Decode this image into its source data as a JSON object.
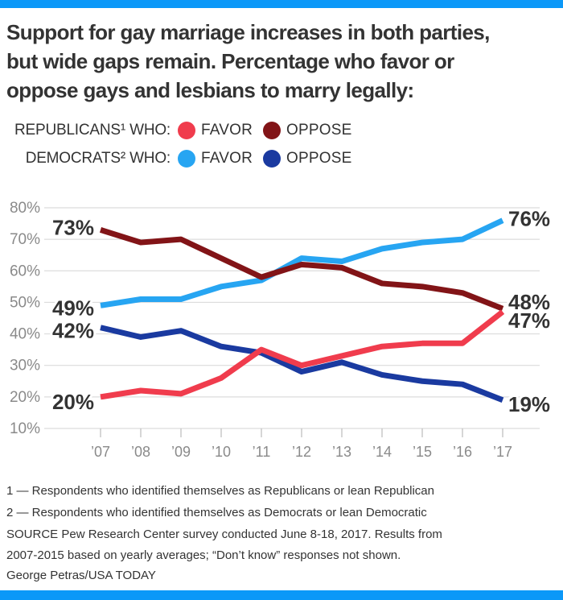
{
  "accent_color": "#0b98f8",
  "title_lines": [
    "Support for gay marriage increases in both parties,",
    "but wide gaps remain. Percentage who favor or",
    "oppose gays and lesbians to marry legally:"
  ],
  "legend": {
    "rows": [
      {
        "label": "REPUBLICANS¹ WHO:",
        "favor_label": "FAVOR",
        "oppose_label": "OPPOSE"
      },
      {
        "label": "DEMOCRATS² WHO:",
        "favor_label": "FAVOR",
        "oppose_label": "OPPOSE"
      }
    ]
  },
  "chart_data": {
    "type": "line",
    "title": "Percentage who favor or oppose gays and lesbians to marry legally",
    "categories": [
      "’07",
      "’08",
      "’09",
      "’10",
      "’11",
      "’12",
      "’13",
      "’14",
      "’15",
      "’16",
      "’17"
    ],
    "ylim": [
      10,
      80
    ],
    "grid": true,
    "legend_position": "top",
    "y_ticks": [
      {
        "value": 80,
        "label": "80%"
      },
      {
        "value": 70,
        "label": "70%"
      },
      {
        "value": 60,
        "label": "60%"
      },
      {
        "value": 50,
        "label": "50%"
      },
      {
        "value": 40,
        "label": "40%"
      },
      {
        "value": 30,
        "label": "30%"
      },
      {
        "value": 20,
        "label": "20%"
      },
      {
        "value": 10,
        "label": "10%"
      }
    ],
    "series": [
      {
        "name": "Republicans favor",
        "color": "#f03c4d",
        "values": [
          20,
          22,
          21,
          26,
          35,
          30,
          33,
          36,
          37,
          37,
          47
        ],
        "start_label": "20%",
        "end_label": "47%"
      },
      {
        "name": "Republicans oppose",
        "color": "#821417",
        "values": [
          73,
          69,
          70,
          64,
          58,
          62,
          61,
          56,
          55,
          53,
          48
        ],
        "start_label": "73%",
        "end_label": "48%"
      },
      {
        "name": "Democrats favor",
        "color": "#27a5f2",
        "values": [
          49,
          51,
          51,
          55,
          57,
          64,
          63,
          67,
          69,
          70,
          76
        ],
        "start_label": "49%",
        "end_label": "76%"
      },
      {
        "name": "Democrats oppose",
        "color": "#1a3aa0",
        "values": [
          42,
          39,
          41,
          36,
          34,
          28,
          31,
          27,
          25,
          24,
          19
        ],
        "start_label": "42%",
        "end_label": "19%"
      }
    ]
  },
  "footnotes": [
    "1 — Respondents who identified themselves as Republicans or lean Republican",
    "2 — Respondents who identified themselves as Democrats or lean Democratic"
  ],
  "source": "SOURCE Pew Research Center survey conducted June 8-18, 2017. Results from 2007-2015 based on yearly averages; “Don’t know” responses not shown.",
  "credit": "George Petras/USA TODAY"
}
